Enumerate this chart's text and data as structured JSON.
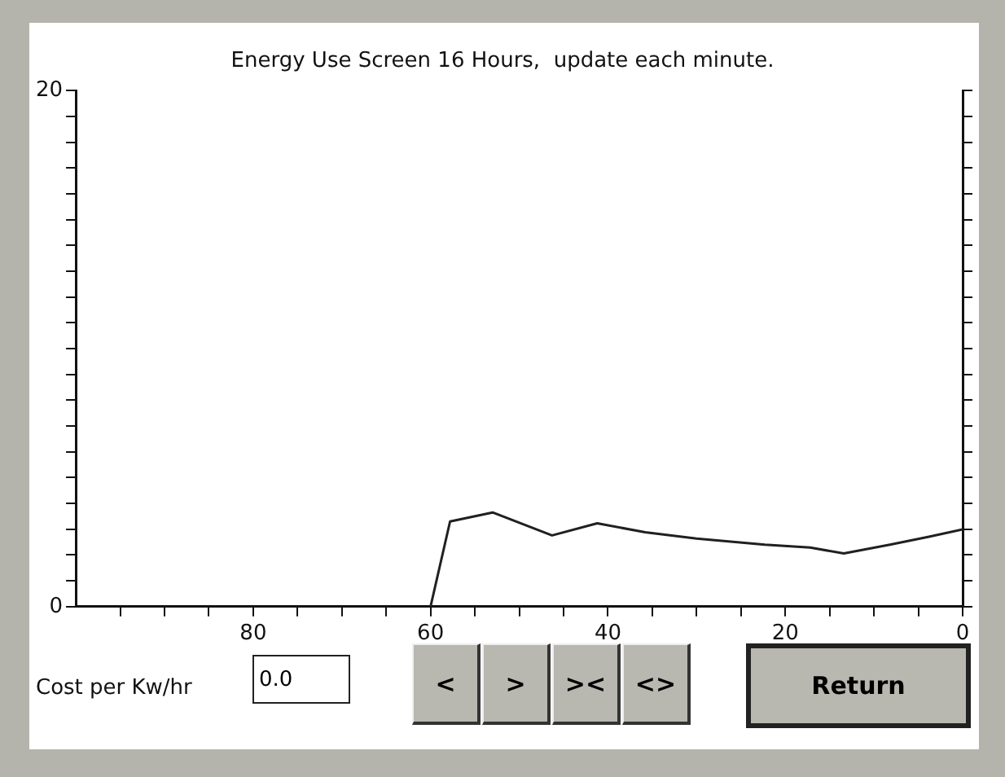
{
  "chart_data": {
    "type": "line",
    "title": "Energy Use Screen 16 Hours,  update each minute.",
    "x": [
      60,
      57.8,
      53,
      46.3,
      41.2,
      35.8,
      30,
      22.3,
      17.2,
      13.4,
      8.2,
      3.8,
      0
    ],
    "values": [
      0,
      3.3,
      3.65,
      2.76,
      3.23,
      2.88,
      2.64,
      2.4,
      2.29,
      2.06,
      2.4,
      2.71,
      2.99
    ],
    "color": "#202020",
    "marker": "none",
    "line_style": "solid",
    "grid": false,
    "legend": false,
    "xlim": [
      100,
      0
    ],
    "xticks": [
      {
        "value": 95,
        "label": null
      },
      {
        "value": 90,
        "label": null
      },
      {
        "value": 85,
        "label": null
      },
      80,
      {
        "value": 75,
        "label": null
      },
      {
        "value": 70,
        "label": null
      },
      {
        "value": 65,
        "label": null
      },
      60,
      {
        "value": 55,
        "label": null
      },
      {
        "value": 50,
        "label": null
      },
      {
        "value": 45,
        "label": null
      },
      40,
      {
        "value": 35,
        "label": null
      },
      {
        "value": 30,
        "label": null
      },
      {
        "value": 25,
        "label": null
      },
      20,
      {
        "value": 15,
        "label": null
      },
      {
        "value": 10,
        "label": null
      },
      {
        "value": 5,
        "label": null
      },
      0
    ],
    "ylim": [
      0,
      20
    ],
    "yticks": [
      0,
      {
        "value": 1,
        "label": null
      },
      {
        "value": 2,
        "label": null
      },
      {
        "value": 3,
        "label": null
      },
      {
        "value": 4,
        "label": null
      },
      {
        "value": 5,
        "label": null
      },
      {
        "value": 6,
        "label": null
      },
      {
        "value": 7,
        "label": null
      },
      {
        "value": 8,
        "label": null
      },
      {
        "value": 9,
        "label": null
      },
      {
        "value": 10,
        "label": null
      },
      {
        "value": 11,
        "label": null
      },
      {
        "value": 12,
        "label": null
      },
      {
        "value": 13,
        "label": null
      },
      {
        "value": 14,
        "label": null
      },
      {
        "value": 15,
        "label": null
      },
      {
        "value": 16,
        "label": null
      },
      {
        "value": 17,
        "label": null
      },
      {
        "value": 18,
        "label": null
      },
      {
        "value": 19,
        "label": null
      },
      20
    ],
    "annotations": [
      "Cost per Kw/hr",
      "0.0",
      "<",
      ">",
      "><",
      "<>",
      "Return"
    ]
  }
}
